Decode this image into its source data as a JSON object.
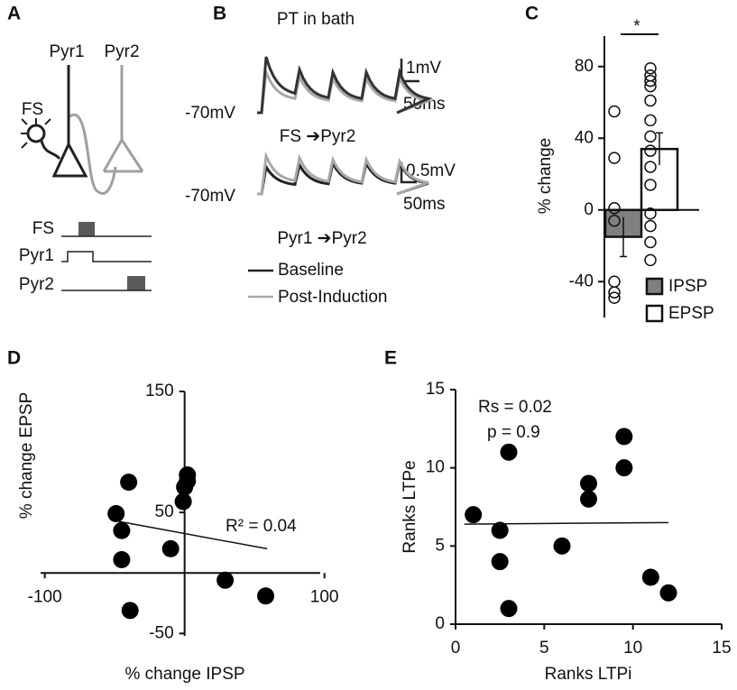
{
  "panels": {
    "a": {
      "label": "A",
      "cells": [
        "Pyr1",
        "Pyr2"
      ],
      "interneuron": "FS",
      "protocol": [
        "FS",
        "Pyr1",
        "Pyr2"
      ]
    },
    "b": {
      "label": "B",
      "title": "PT in bath",
      "recordings": [
        {
          "resting": "-70mV",
          "scale_v": "1mV",
          "scale_t": "50ms",
          "pathway": "FS ➔Pyr2"
        },
        {
          "resting": "-70mV",
          "scale_v": "0.5mV",
          "scale_t": "50ms",
          "pathway": "Pyr1 ➔Pyr2"
        }
      ],
      "legend": [
        "Baseline",
        "Post-Induction"
      ]
    }
  },
  "chart_data": [
    {
      "type": "bar",
      "panel": "C",
      "categories": [
        "IPSP",
        "EPSP"
      ],
      "values": [
        -15,
        34
      ],
      "errors": [
        11,
        9
      ],
      "points": [
        [
          55,
          29,
          1,
          -6,
          -40,
          -46,
          -49
        ],
        [
          79,
          75,
          72,
          69,
          61,
          50,
          41,
          33,
          24,
          14,
          -2,
          -9,
          -18,
          -28
        ]
      ],
      "colors": [
        "#808080",
        "#ffffff"
      ],
      "ylabel": "% change",
      "annotation": "*",
      "ylim": [
        -60,
        97
      ],
      "yticks": [
        -40,
        0,
        40,
        80
      ]
    },
    {
      "type": "scatter",
      "panel": "D",
      "x": [
        -40,
        -49,
        -45,
        -45,
        -39,
        -10,
        -1,
        0,
        2,
        2,
        29,
        58
      ],
      "y": [
        75,
        49,
        35,
        11,
        -31,
        20,
        59,
        71,
        81,
        76,
        -6,
        -19
      ],
      "trendline": {
        "x": [
          -49,
          59
        ],
        "y": [
          43,
          20
        ]
      },
      "annotation": "R² = 0.04",
      "xlabel": "% change IPSP",
      "ylabel": "% change EPSP",
      "xlim": [
        -103,
        97
      ],
      "ylim": [
        -52,
        150
      ],
      "xticks": [
        -100,
        100
      ],
      "yticks": [
        -50,
        50,
        150
      ]
    },
    {
      "type": "scatter",
      "panel": "E",
      "x": [
        1,
        2.5,
        2.5,
        3,
        3,
        6,
        7.5,
        7.5,
        9.5,
        9.5,
        11,
        12
      ],
      "y": [
        7,
        6,
        4,
        1,
        11,
        5,
        9,
        8,
        12,
        10,
        3,
        2
      ],
      "trendline": {
        "x": [
          0.5,
          12
        ],
        "y": [
          6.4,
          6.5
        ]
      },
      "annotations": [
        "Rs = 0.02",
        "p = 0.9"
      ],
      "xlabel": "Ranks LTPi",
      "ylabel": "Ranks LTPe",
      "xlim": [
        0,
        15
      ],
      "ylim": [
        0,
        15
      ],
      "xticks": [
        0,
        5,
        10,
        15
      ],
      "yticks": [
        0,
        5,
        10,
        15
      ]
    }
  ]
}
